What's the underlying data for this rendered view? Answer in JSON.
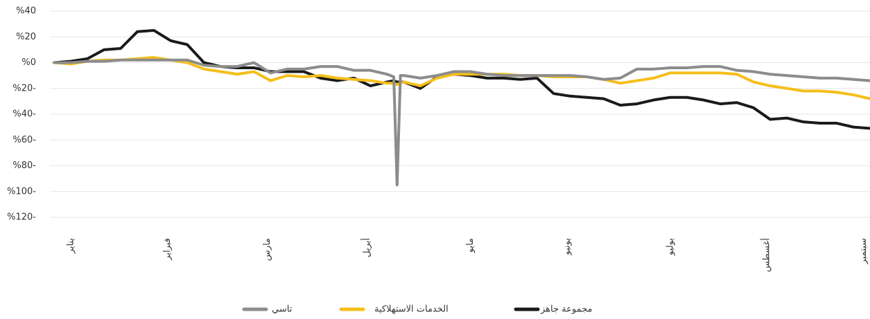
{
  "chart_data": {
    "type": "line",
    "x": [
      0,
      5,
      10,
      15,
      20,
      25,
      30,
      35,
      40,
      45,
      50,
      55,
      60,
      65,
      70,
      75,
      80,
      85,
      90,
      95,
      100,
      102,
      103,
      104,
      105,
      110,
      115,
      120,
      125,
      130,
      135,
      140,
      145,
      150,
      155,
      160,
      165,
      170,
      175,
      180,
      185,
      190,
      195,
      200,
      205,
      210,
      215,
      220,
      225,
      230,
      235,
      240,
      245
    ],
    "xlim": [
      0,
      245
    ],
    "xticks": [
      {
        "value": 5,
        "label": "يناير"
      },
      {
        "value": 34,
        "label": "فبراير"
      },
      {
        "value": 64,
        "label": "مارس"
      },
      {
        "value": 94,
        "label": "أبريل"
      },
      {
        "value": 125,
        "label": "مايو"
      },
      {
        "value": 154,
        "label": "يونيو"
      },
      {
        "value": 185,
        "label": "يوليو"
      },
      {
        "value": 214,
        "label": "أغسطس"
      },
      {
        "value": 243,
        "label": "سبتمبر"
      }
    ],
    "ylim": [
      -120,
      40
    ],
    "yticks": [
      {
        "value": 40,
        "label": "%40"
      },
      {
        "value": 20,
        "label": "%20"
      },
      {
        "value": 0,
        "label": "%0"
      },
      {
        "value": -20,
        "label": "%20-"
      },
      {
        "value": -40,
        "label": "%40-"
      },
      {
        "value": -60,
        "label": "%60-"
      },
      {
        "value": -80,
        "label": "%80-"
      },
      {
        "value": -100,
        "label": "%100-"
      },
      {
        "value": -120,
        "label": "%120-"
      }
    ],
    "grid": true,
    "series": [
      {
        "name": "مجموعة جاهز",
        "color": "#1a1a1a",
        "values": [
          0,
          1,
          3,
          10,
          11,
          24,
          25,
          17,
          14,
          0,
          -3,
          -4,
          -4,
          -7,
          -7,
          -7,
          -12,
          -14,
          -12,
          -18,
          -15,
          -14,
          -15,
          -15,
          -15,
          -20,
          -11,
          -9,
          -10,
          -12,
          -12,
          -13,
          -12,
          -24,
          -26,
          -27,
          -28,
          -33,
          -32,
          -29,
          -27,
          -27,
          -29,
          -32,
          -31,
          -35,
          -44,
          -43,
          -46,
          -47,
          -47,
          -50,
          -51
        ]
      },
      {
        "name": "الخدمات الاستهلاكية",
        "color": "#f5be1a",
        "values": [
          0,
          -1,
          1,
          2,
          2,
          3,
          4,
          2,
          0,
          -5,
          -7,
          -9,
          -7,
          -14,
          -10,
          -11,
          -10,
          -12,
          -13,
          -14,
          -16,
          -16,
          -17,
          -16,
          -15,
          -18,
          -12,
          -9,
          -9,
          -9,
          -9,
          -10,
          -10,
          -11,
          -11,
          -11,
          -13,
          -16,
          -14,
          -12,
          -8,
          -8,
          -8,
          -8,
          -9,
          -15,
          -18,
          -20,
          -22,
          -22,
          -23,
          -25,
          -28
        ]
      },
      {
        "name": "تاسي",
        "color": "#8c8c8c",
        "values": [
          0,
          0,
          1,
          1,
          2,
          2,
          2,
          2,
          2,
          -2,
          -3,
          -3,
          0,
          -8,
          -5,
          -5,
          -3,
          -3,
          -6,
          -6,
          -9,
          -11,
          -95,
          -10,
          -10,
          -12,
          -10,
          -7,
          -7,
          -9,
          -10,
          -10,
          -10,
          -10,
          -10,
          -11,
          -13,
          -12,
          -5,
          -5,
          -4,
          -4,
          -3,
          -3,
          -6,
          -7,
          -9,
          -10,
          -11,
          -12,
          -12,
          -13,
          -14
        ]
      }
    ]
  }
}
